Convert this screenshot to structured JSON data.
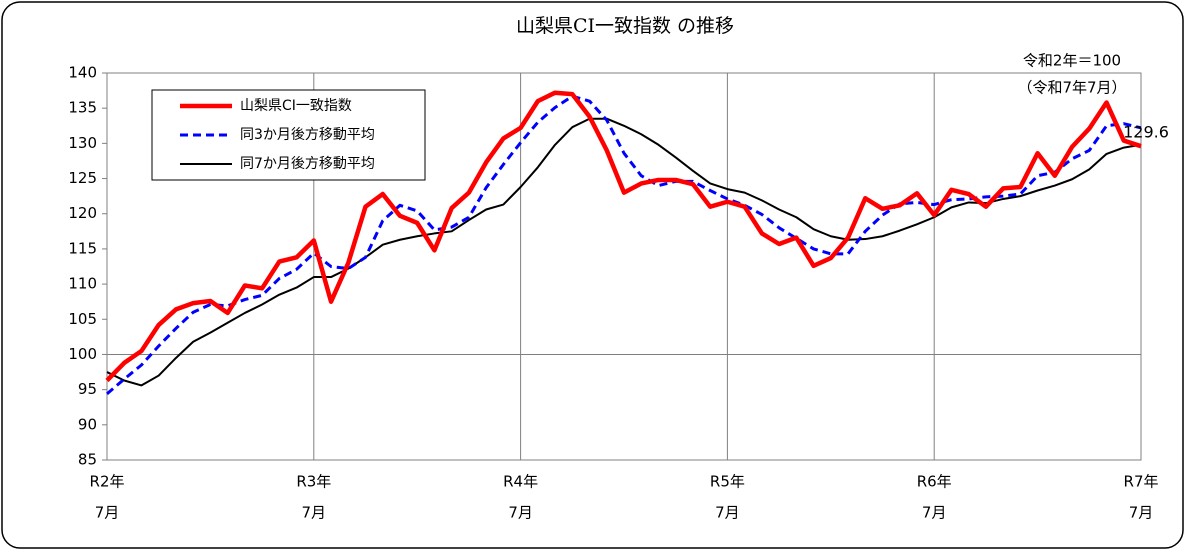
{
  "chart_data": {
    "type": "line",
    "title": "山梨県CI一致指数 の推移",
    "annotations": [
      "令和2年＝100",
      "（令和7年7月）"
    ],
    "categories": [
      "R2年",
      null,
      null,
      null,
      null,
      null,
      null,
      null,
      null,
      null,
      null,
      null,
      "R3年",
      null,
      null,
      null,
      null,
      null,
      null,
      null,
      null,
      null,
      null,
      null,
      "R4年",
      null,
      null,
      null,
      null,
      null,
      null,
      null,
      null,
      null,
      null,
      null,
      "R5年",
      null,
      null,
      null,
      null,
      null,
      null,
      null,
      null,
      null,
      null,
      null,
      "R6年",
      null,
      null,
      null,
      null,
      null,
      null,
      null,
      null,
      null,
      null,
      null,
      "R7年"
    ],
    "category_sublabels": [
      "7月",
      null,
      null,
      null,
      null,
      null,
      null,
      null,
      null,
      null,
      null,
      null,
      "7月",
      null,
      null,
      null,
      null,
      null,
      null,
      null,
      null,
      null,
      null,
      null,
      "7月",
      null,
      null,
      null,
      null,
      null,
      null,
      null,
      null,
      null,
      null,
      null,
      "7月",
      null,
      null,
      null,
      null,
      null,
      null,
      null,
      null,
      null,
      null,
      null,
      "7月",
      null,
      null,
      null,
      null,
      null,
      null,
      null,
      null,
      null,
      null,
      null,
      "7月"
    ],
    "ylim": [
      85,
      140
    ],
    "yticks": [
      85,
      90,
      95,
      100,
      105,
      110,
      115,
      120,
      125,
      130,
      135,
      140
    ],
    "grid_y": [
      100
    ],
    "series": [
      {
        "name": "山梨県CI一致指数",
        "color": "#ff0000",
        "style": "solid",
        "values": [
          96.3,
          98.8,
          100.5,
          104.2,
          106.4,
          107.3,
          107.6,
          105.9,
          109.8,
          109.4,
          113.2,
          113.8,
          116.2,
          107.5,
          113.0,
          121.0,
          122.8,
          119.7,
          118.7,
          114.8,
          120.8,
          123.0,
          127.3,
          130.7,
          132.2,
          136.0,
          137.2,
          137.0,
          133.8,
          129.0,
          123.0,
          124.3,
          124.8,
          124.8,
          124.2,
          121.0,
          121.7,
          121.0,
          117.2,
          115.7,
          116.6,
          112.6,
          113.7,
          116.6,
          122.2,
          120.7,
          121.2,
          122.9,
          119.8,
          123.4,
          122.8,
          121.0,
          123.6,
          123.8,
          128.6,
          125.4,
          129.5,
          132.1,
          135.8,
          130.4,
          129.6
        ],
        "value_labels": {
          "60": "129.6"
        }
      },
      {
        "name": "同3か月後方移動平均",
        "color": "#0000ff",
        "style": "dashed",
        "values": [
          94.4,
          96.5,
          98.5,
          101.2,
          103.7,
          106.0,
          107.1,
          106.9,
          107.8,
          108.4,
          110.8,
          112.1,
          114.4,
          112.5,
          112.2,
          113.8,
          119.0,
          121.2,
          120.4,
          117.7,
          118.1,
          119.5,
          123.7,
          127.0,
          130.1,
          133.0,
          135.1,
          136.7,
          136.0,
          133.3,
          128.6,
          125.4,
          124.0,
          124.6,
          124.6,
          123.3,
          122.1,
          121.2,
          119.9,
          118.0,
          116.5,
          115.0,
          114.3,
          114.3,
          117.5,
          119.8,
          121.4,
          121.6,
          121.3,
          122.0,
          122.1,
          122.4,
          122.5,
          122.8,
          125.4,
          125.9,
          127.8,
          129.0,
          132.5,
          132.8,
          132.2
        ]
      },
      {
        "name": "同7か月後方移動平均",
        "color": "#000000",
        "style": "solid",
        "values": [
          97.5,
          96.3,
          95.6,
          97.0,
          99.5,
          101.8,
          103.1,
          104.5,
          105.9,
          107.1,
          108.5,
          109.5,
          111.0,
          111.0,
          112.2,
          113.8,
          115.6,
          116.3,
          116.8,
          117.2,
          117.5,
          119.1,
          120.6,
          121.3,
          123.8,
          126.6,
          129.8,
          132.3,
          133.5,
          133.5,
          132.5,
          131.3,
          129.8,
          128.0,
          126.1,
          124.3,
          123.5,
          123.0,
          121.9,
          120.6,
          119.5,
          117.8,
          116.8,
          116.3,
          116.4,
          116.8,
          117.6,
          118.5,
          119.5,
          120.9,
          121.6,
          121.5,
          122.1,
          122.5,
          123.3,
          124.0,
          124.9,
          126.3,
          128.5,
          129.4,
          129.8
        ]
      }
    ]
  }
}
